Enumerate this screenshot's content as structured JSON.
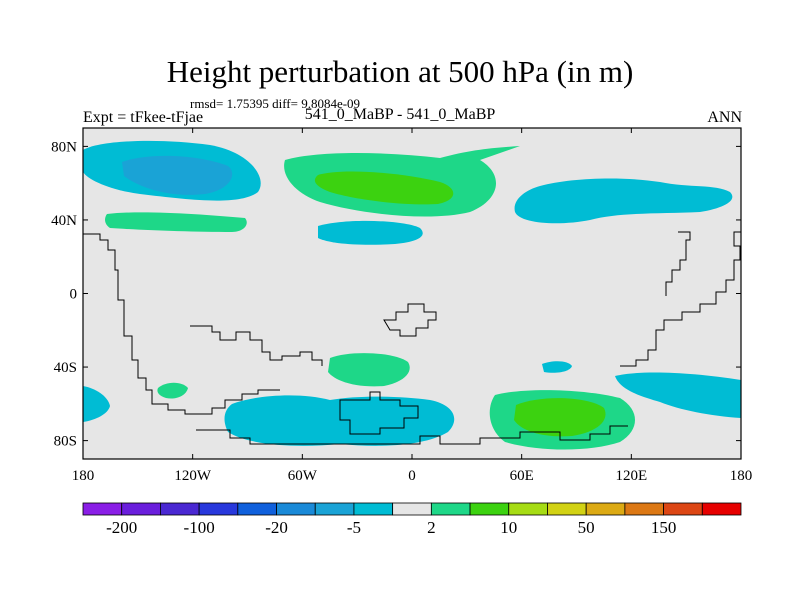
{
  "title": "Height perturbation at 500 hPa (in m)",
  "stats": "rmsd= 1.75395 diff= 9.8084e-09",
  "left_label": "Expt = tFkee-tFjae",
  "center_label": "541_0_MaBP - 541_0_MaBP",
  "right_label": "ANN",
  "lon_ticks": [
    {
      "lon": -180,
      "label": "180"
    },
    {
      "lon": -120,
      "label": "120W"
    },
    {
      "lon": -60,
      "label": "60W"
    },
    {
      "lon": 0,
      "label": "0"
    },
    {
      "lon": 60,
      "label": "60E"
    },
    {
      "lon": 120,
      "label": "120E"
    },
    {
      "lon": 180,
      "label": "180"
    }
  ],
  "lat_ticks": [
    {
      "lat": 80,
      "label": "80N"
    },
    {
      "lat": 40,
      "label": "40N"
    },
    {
      "lat": 0,
      "label": "0"
    },
    {
      "lat": -40,
      "label": "40S"
    },
    {
      "lat": -80,
      "label": "80S"
    }
  ],
  "lon_range": [
    -180,
    180
  ],
  "lat_range": [
    -90,
    90
  ],
  "colors": {
    "background": "#e6e6e6",
    "neg_light": "#00bcd4",
    "neg_mid": "#1aa3d6",
    "pos_light": "#1ed788",
    "pos_mid": "#3cd210"
  },
  "colorbar": {
    "colors": [
      "#8a1ee6",
      "#6a1edc",
      "#4a28d2",
      "#2838dc",
      "#1060dc",
      "#1a8ad8",
      "#1aa3d6",
      "#00bcd4",
      "#e6e6e6",
      "#1ed788",
      "#3cd210",
      "#a6dc14",
      "#d2d214",
      "#dcaa14",
      "#dc7814",
      "#dc4614",
      "#e60000"
    ],
    "labels": [
      {
        "index": 1,
        "label": "-200"
      },
      {
        "index": 3,
        "label": "-100"
      },
      {
        "index": 5,
        "label": "-20"
      },
      {
        "index": 7,
        "label": "-5"
      },
      {
        "index": 9,
        "label": "2"
      },
      {
        "index": 11,
        "label": "10"
      },
      {
        "index": 13,
        "label": "50"
      },
      {
        "index": 15,
        "label": "150"
      }
    ]
  }
}
